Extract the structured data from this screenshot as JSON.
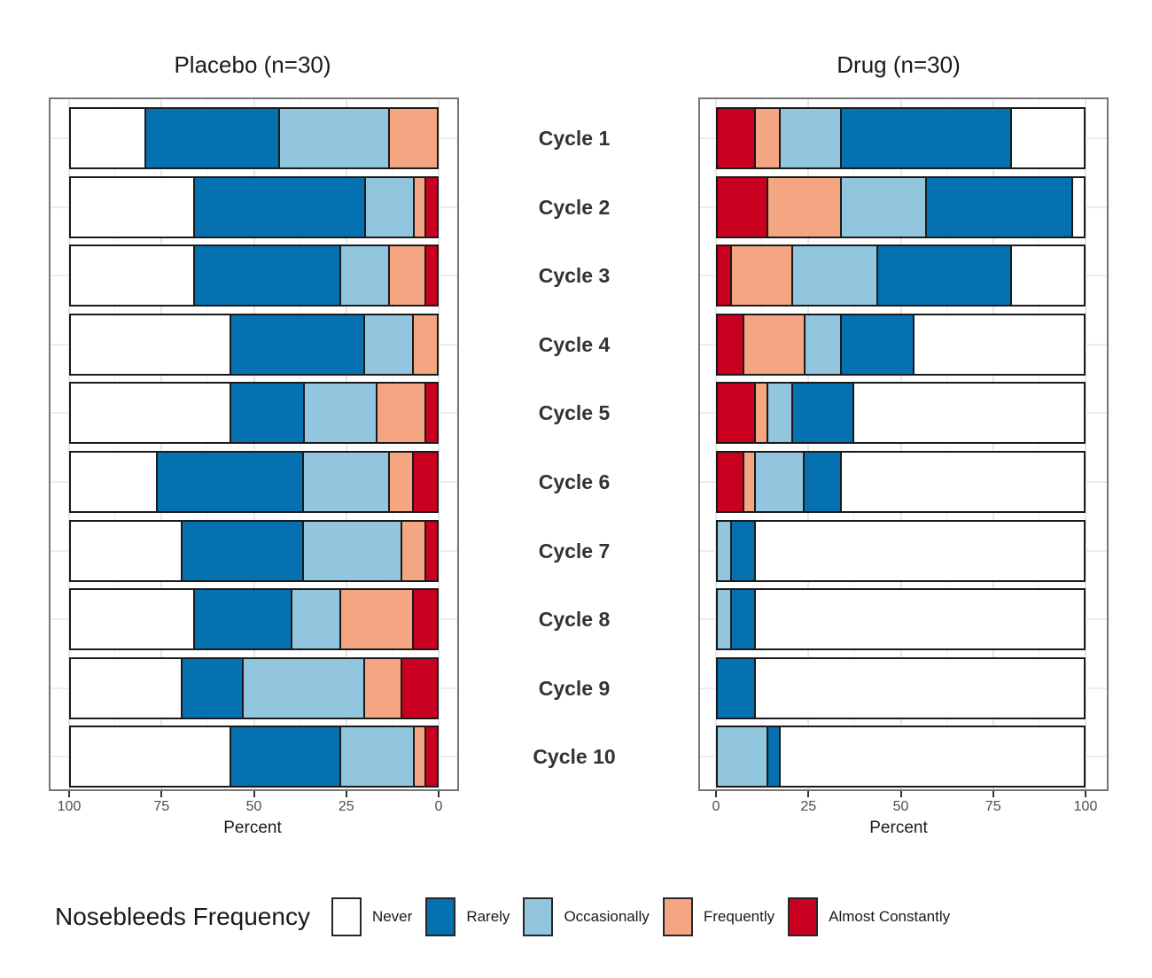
{
  "chart_data": {
    "type": "bar",
    "stacked": true,
    "orientation": "horizontal",
    "unit": "percent",
    "grid": true,
    "categories": [
      "Cycle 1",
      "Cycle 2",
      "Cycle 3",
      "Cycle 4",
      "Cycle 5",
      "Cycle 6",
      "Cycle 7",
      "Cycle 8",
      "Cycle 9",
      "Cycle 10"
    ],
    "levels": [
      "Never",
      "Rarely",
      "Occasionally",
      "Frequently",
      "Almost Constantly"
    ],
    "level_colors": [
      "#ffffff",
      "#0571b0",
      "#92c5de",
      "#f4a582",
      "#ca0020"
    ],
    "panels": [
      {
        "id": "placebo",
        "title": "Placebo (n=30)",
        "xlabel": "Percent",
        "axis_reversed": true,
        "x_ticks": [
          100,
          75,
          50,
          25,
          0
        ],
        "xlim": [
          0,
          100
        ],
        "values": [
          [
            20,
            36.7,
            30,
            13.3,
            0
          ],
          [
            33.3,
            46.7,
            13.3,
            3.3,
            3.3
          ],
          [
            33.3,
            40,
            13.3,
            10,
            3.3
          ],
          [
            43.3,
            36.7,
            13.3,
            6.7,
            0
          ],
          [
            43.3,
            20,
            20,
            13.3,
            3.3
          ],
          [
            23.3,
            40,
            23.3,
            6.7,
            6.7
          ],
          [
            30,
            33.3,
            26.7,
            6.7,
            3.3
          ],
          [
            33.3,
            26.7,
            13.3,
            20,
            6.7
          ],
          [
            30,
            16.7,
            33.3,
            10,
            10
          ],
          [
            43.3,
            30,
            20,
            3.3,
            3.3
          ]
        ]
      },
      {
        "id": "drug",
        "title": "Drug (n=30)",
        "xlabel": "Percent",
        "axis_reversed": false,
        "x_ticks": [
          0,
          25,
          50,
          75,
          100
        ],
        "xlim": [
          0,
          100
        ],
        "values": [
          [
            20,
            46.7,
            16.7,
            6.7,
            10
          ],
          [
            3.3,
            40,
            23.3,
            20,
            13.3
          ],
          [
            20,
            36.7,
            23.3,
            16.7,
            3.3
          ],
          [
            46.7,
            20,
            10,
            16.7,
            6.7
          ],
          [
            63.3,
            16.7,
            6.7,
            3.3,
            10
          ],
          [
            66.7,
            10,
            13.3,
            3.3,
            6.7
          ],
          [
            90,
            6.7,
            3.3,
            0,
            0
          ],
          [
            90,
            6.7,
            3.3,
            0,
            0
          ],
          [
            90,
            10,
            0,
            0,
            0
          ],
          [
            83.3,
            3.3,
            13.3,
            0,
            0
          ]
        ]
      }
    ],
    "legend": {
      "title": "Nosebleeds Frequency",
      "position": "bottom",
      "items": [
        {
          "label": "Never",
          "color": "#ffffff"
        },
        {
          "label": "Rarely",
          "color": "#0571b0"
        },
        {
          "label": "Occasionally",
          "color": "#92c5de"
        },
        {
          "label": "Frequently",
          "color": "#f4a582"
        },
        {
          "label": "Almost Constantly",
          "color": "#ca0020"
        }
      ]
    }
  }
}
